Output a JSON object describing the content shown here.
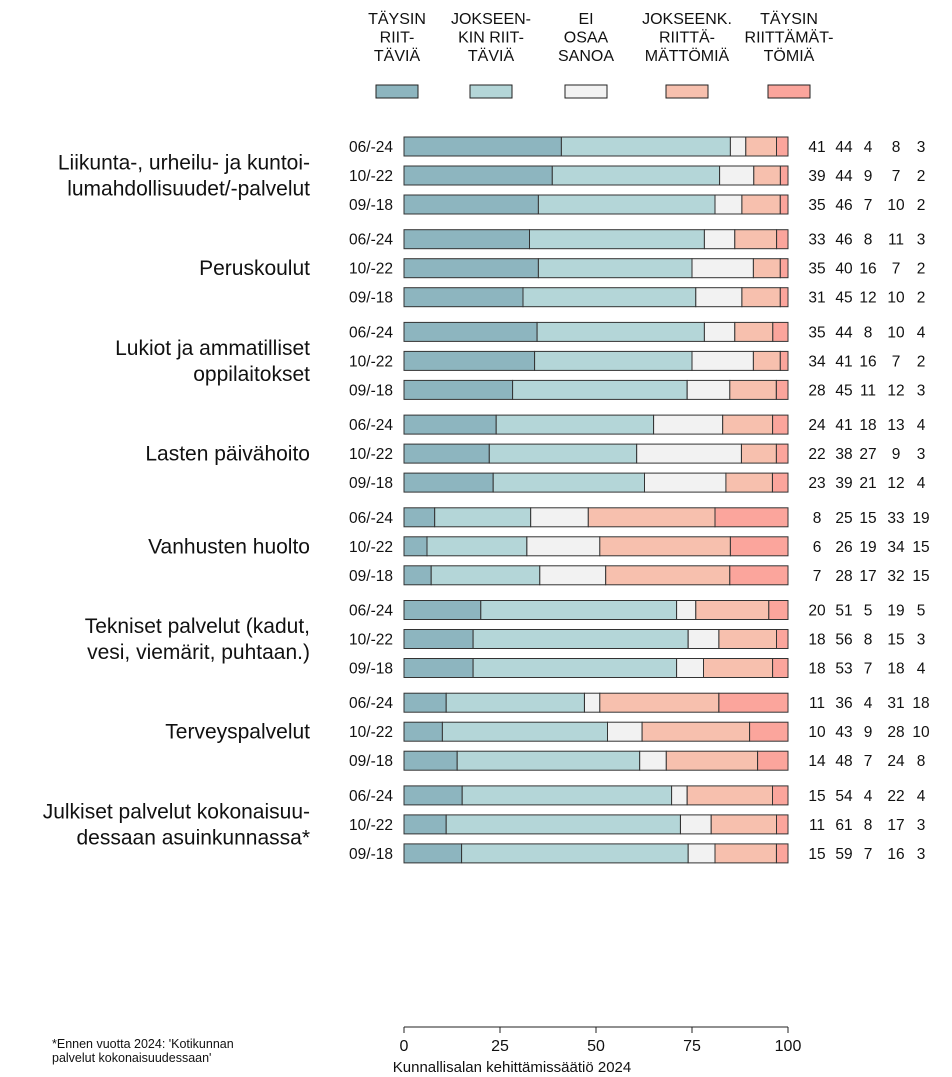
{
  "chart_data": {
    "type": "bar",
    "orientation": "horizontal",
    "stacked": true,
    "xlim": [
      0,
      100
    ],
    "x_ticks": [
      "0",
      "25",
      "50",
      "75",
      "100"
    ],
    "legend_position": "top",
    "categories": [
      {
        "label": "Liikunta-, urheilu- ja kuntoi-\nlumahdollisuudet/-palvelut",
        "rows": [
          {
            "period": "06/-24",
            "values": [
              41,
              44,
              4,
              8,
              3
            ]
          },
          {
            "period": "10/-22",
            "values": [
              39,
              44,
              9,
              7,
              2
            ]
          },
          {
            "period": "09/-18",
            "values": [
              35,
              46,
              7,
              10,
              2
            ]
          }
        ]
      },
      {
        "label": "Peruskoulut",
        "rows": [
          {
            "period": "06/-24",
            "values": [
              33,
              46,
              8,
              11,
              3
            ]
          },
          {
            "period": "10/-22",
            "values": [
              35,
              40,
              16,
              7,
              2
            ]
          },
          {
            "period": "09/-18",
            "values": [
              31,
              45,
              12,
              10,
              2
            ]
          }
        ]
      },
      {
        "label": "Lukiot ja ammatilliset\noppilaitokset",
        "rows": [
          {
            "period": "06/-24",
            "values": [
              35,
              44,
              8,
              10,
              4
            ]
          },
          {
            "period": "10/-22",
            "values": [
              34,
              41,
              16,
              7,
              2
            ]
          },
          {
            "period": "09/-18",
            "values": [
              28,
              45,
              11,
              12,
              3
            ]
          }
        ]
      },
      {
        "label": "Lasten päivähoito",
        "rows": [
          {
            "period": "06/-24",
            "values": [
              24,
              41,
              18,
              13,
              4
            ]
          },
          {
            "period": "10/-22",
            "values": [
              22,
              38,
              27,
              9,
              3
            ]
          },
          {
            "period": "09/-18",
            "values": [
              23,
              39,
              21,
              12,
              4
            ]
          }
        ]
      },
      {
        "label": "Vanhusten huolto",
        "rows": [
          {
            "period": "06/-24",
            "values": [
              8,
              25,
              15,
              33,
              19
            ]
          },
          {
            "period": "10/-22",
            "values": [
              6,
              26,
              19,
              34,
              15
            ]
          },
          {
            "period": "09/-18",
            "values": [
              7,
              28,
              17,
              32,
              15
            ]
          }
        ]
      },
      {
        "label": "Tekniset palvelut (kadut,\nvesi, viemärit, puhtaan.)",
        "rows": [
          {
            "period": "06/-24",
            "values": [
              20,
              51,
              5,
              19,
              5
            ]
          },
          {
            "period": "10/-22",
            "values": [
              18,
              56,
              8,
              15,
              3
            ]
          },
          {
            "period": "09/-18",
            "values": [
              18,
              53,
              7,
              18,
              4
            ]
          }
        ]
      },
      {
        "label": "Terveyspalvelut",
        "rows": [
          {
            "period": "06/-24",
            "values": [
              11,
              36,
              4,
              31,
              18
            ]
          },
          {
            "period": "10/-22",
            "values": [
              10,
              43,
              9,
              28,
              10
            ]
          },
          {
            "period": "09/-18",
            "values": [
              14,
              48,
              7,
              24,
              8
            ]
          }
        ]
      },
      {
        "label": "Julkiset palvelut kokonaisuu-\ndessaan asuinkunnassa*",
        "rows": [
          {
            "period": "06/-24",
            "values": [
              15,
              54,
              4,
              22,
              4
            ]
          },
          {
            "period": "10/-22",
            "values": [
              11,
              61,
              8,
              17,
              3
            ]
          },
          {
            "period": "09/-18",
            "values": [
              15,
              59,
              7,
              16,
              3
            ]
          }
        ]
      }
    ],
    "series": [
      {
        "name": "TÄYSIN\nRIIT-\nTÄVIÄ",
        "color": "#8db5bf"
      },
      {
        "name": "JOKSEEN-\nKIN RIIT-\nTÄVIÄ",
        "color": "#b4d6d8"
      },
      {
        "name": "EI\nOSAA\nSANOA",
        "color": "#f2f2f2"
      },
      {
        "name": "JOKSEENK.\nRIITTÄ-\nMÄTTÖMIÄ",
        "color": "#f7c0ae"
      },
      {
        "name": "TÄYSIN\nRIITTÄMÄT-\nTÖMIÄ",
        "color": "#fba59c"
      }
    ],
    "footnote": "*Ennen vuotta 2024: 'Kotikunnan\npalvelut kokonaisuudessaan'",
    "source": "Kunnallisalan kehittämissäätiö 2024"
  }
}
